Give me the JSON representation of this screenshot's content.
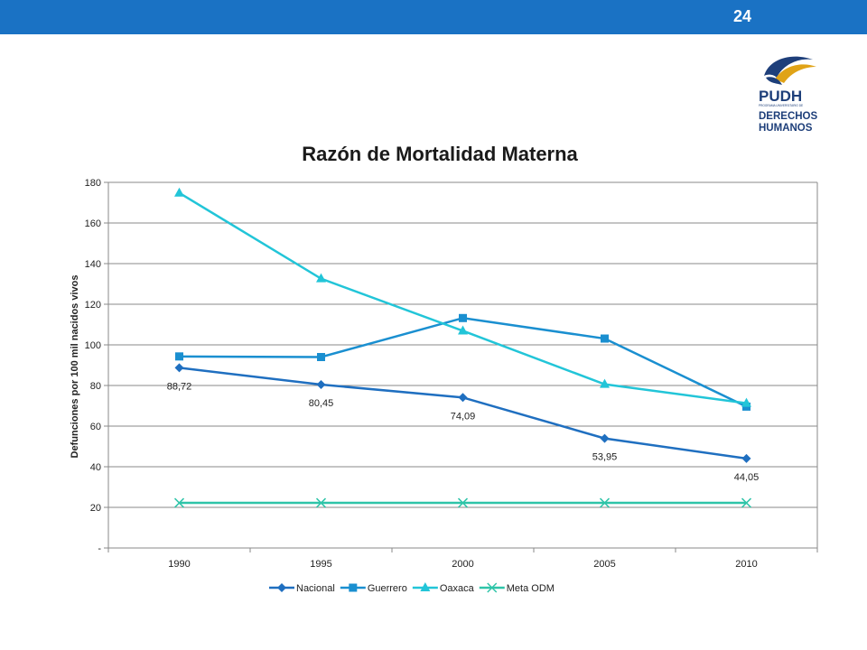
{
  "slide": {
    "page_number": "24"
  },
  "logo": {
    "name": "PUDH",
    "subtitle": "PROGRAMA UNIVERSITARIO DE",
    "line1": "DERECHOS",
    "line2": "HUMANOS"
  },
  "chart_data": {
    "type": "line",
    "title": "Razón de Mortalidad Materna",
    "xlabel": "",
    "ylabel": "Defunciones por 100 mil nacidos vivos",
    "x": [
      "1990",
      "1995",
      "2000",
      "2005",
      "2010"
    ],
    "ylim": [
      0,
      180
    ],
    "yticks": [
      {
        "value": 0,
        "label": "-"
      },
      {
        "value": 20,
        "label": "20"
      },
      {
        "value": 40,
        "label": "40"
      },
      {
        "value": 60,
        "label": "60"
      },
      {
        "value": 80,
        "label": "80"
      },
      {
        "value": 100,
        "label": "100"
      },
      {
        "value": 120,
        "label": "120"
      },
      {
        "value": 140,
        "label": "140"
      },
      {
        "value": 160,
        "label": "160"
      },
      {
        "value": 180,
        "label": "180"
      }
    ],
    "grid": true,
    "legend_position": "bottom",
    "series": [
      {
        "name": "Nacional",
        "values": [
          88.72,
          80.45,
          74.09,
          53.95,
          44.05
        ],
        "labels": [
          "88,72",
          "80,45",
          "74,09",
          "53,95",
          "44,05"
        ],
        "color": "#1f6fc0",
        "marker": "diamond"
      },
      {
        "name": "Guerrero",
        "values": [
          94.3,
          94,
          113.2,
          103.1,
          69.6
        ],
        "color": "#1a8fd0",
        "marker": "square"
      },
      {
        "name": "Oaxaca",
        "values": [
          174.8,
          132.6,
          106.9,
          80.6,
          71.3
        ],
        "color": "#22c5d8",
        "marker": "triangle"
      },
      {
        "name": "Meta ODM",
        "values": [
          22.2,
          22.2,
          22.2,
          22.2,
          22.2
        ],
        "color": "#2ec4a8",
        "marker": "x"
      }
    ]
  }
}
